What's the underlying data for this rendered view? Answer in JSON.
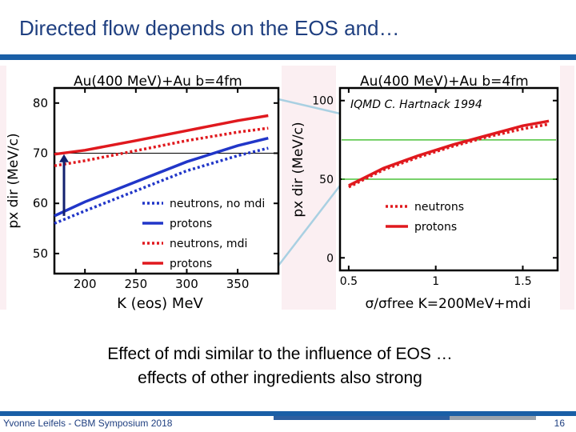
{
  "slide": {
    "title": "Directed flow depends on the EOS and…",
    "caption_line1": "Effect of mdi similar to the influence of EOS …",
    "caption_line2": "effects of other ingredients also strong",
    "footer": "Yvonne Leifels - CBM Symposium 2018",
    "page_number": "16",
    "colors": {
      "accent": "#1a5fa6",
      "title": "#1f3f80",
      "red": "#e0191e",
      "blue": "#2136c8",
      "green": "#4cc23a"
    }
  },
  "chart_data": [
    {
      "type": "line",
      "title": "Au(400  MeV)+Au  b=4fm",
      "xlabel": "K  (eos)  MeV",
      "ylabel": "px dir (MeV/c)",
      "xlim": [
        170,
        390
      ],
      "ylim": [
        46,
        83
      ],
      "xticks": [
        200,
        250,
        300,
        350
      ],
      "yticks": [
        50,
        60,
        70,
        80
      ],
      "series": [
        {
          "name": "neutrons, no mdi",
          "color": "#2136c8",
          "style": "dotted",
          "x": [
            170,
            200,
            250,
            300,
            350,
            380
          ],
          "y": [
            56,
            58.5,
            62.5,
            66.5,
            69.5,
            71
          ]
        },
        {
          "name": "protons",
          "color": "#2136c8",
          "style": "solid",
          "x": [
            170,
            200,
            250,
            300,
            350,
            380
          ],
          "y": [
            57.5,
            60.3,
            64.3,
            68.3,
            71.5,
            73
          ]
        },
        {
          "name": "neutrons, mdi",
          "color": "#e0191e",
          "style": "dotted",
          "x": [
            170,
            200,
            250,
            300,
            350,
            380
          ],
          "y": [
            67.5,
            68.5,
            70.5,
            72.5,
            74.2,
            75
          ]
        },
        {
          "name": "protons",
          "color": "#e0191e",
          "style": "solid",
          "x": [
            170,
            200,
            250,
            300,
            350,
            380
          ],
          "y": [
            69.8,
            70.6,
            72.5,
            74.5,
            76.5,
            77.5
          ]
        }
      ],
      "reference_line_y": 70,
      "arrow": {
        "x": 170,
        "from_y": 57.5,
        "to_y": 69.8
      }
    },
    {
      "type": "line",
      "title": "Au(400  MeV)+Au  b=4fm",
      "annotation": "IQMD C. Hartnack 1994",
      "xlabel": "σ/σfree  K=200MeV+mdi",
      "ylabel": "px dir (MeV/c)",
      "xlim": [
        0.45,
        1.7
      ],
      "ylim": [
        -8,
        108
      ],
      "xticks": [
        0.5,
        1.0,
        1.5
      ],
      "yticks": [
        0,
        50,
        100
      ],
      "hlines": [
        {
          "y": 75,
          "color": "#4cc23a"
        },
        {
          "y": 50,
          "color": "#4cc23a"
        }
      ],
      "series": [
        {
          "name": "neutrons",
          "color": "#e0191e",
          "style": "dotted",
          "x": [
            0.5,
            0.7,
            0.9,
            1.1,
            1.3,
            1.5,
            1.65
          ],
          "y": [
            45,
            56,
            64,
            71,
            77,
            82,
            85
          ]
        },
        {
          "name": "protons",
          "color": "#e0191e",
          "style": "solid",
          "x": [
            0.5,
            0.7,
            0.9,
            1.1,
            1.3,
            1.5,
            1.65
          ],
          "y": [
            46,
            57,
            65,
            72,
            78,
            84,
            87
          ]
        }
      ]
    }
  ]
}
